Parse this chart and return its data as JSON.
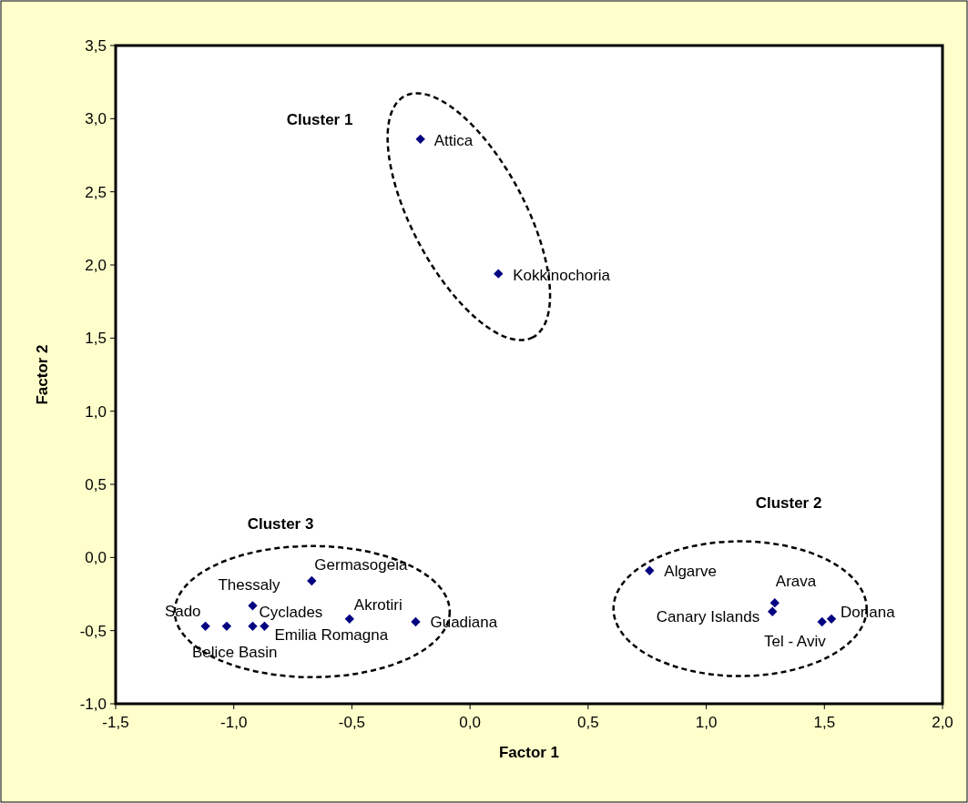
{
  "chart_data": {
    "type": "scatter",
    "xlabel": "Factor 1",
    "ylabel": "Factor 2",
    "marker": "diamond",
    "grid": false,
    "xlim": [
      -1.5,
      2.0
    ],
    "xticks": [
      {
        "value": -1.5,
        "label": "-1,5"
      },
      {
        "value": -1.0,
        "label": "-1,0"
      },
      {
        "value": -0.5,
        "label": "-0,5"
      },
      {
        "value": 0,
        "label": "0,0"
      },
      {
        "value": 0.5,
        "label": "0,5"
      },
      {
        "value": 1.0,
        "label": "1,0"
      },
      {
        "value": 1.5,
        "label": "1,5"
      },
      {
        "value": 2.0,
        "label": "2,0"
      }
    ],
    "ylim": [
      -1.0,
      3.5
    ],
    "yticks": [
      {
        "value": -1.0,
        "label": "-1,0"
      },
      {
        "value": -0.5,
        "label": "-0,5"
      },
      {
        "value": 0,
        "label": "0,0"
      },
      {
        "value": 0.5,
        "label": "0,5"
      },
      {
        "value": 1.0,
        "label": "1,0"
      },
      {
        "value": 1.5,
        "label": "1,5"
      },
      {
        "value": 2.0,
        "label": "2,0"
      },
      {
        "value": 2.5,
        "label": "2,5"
      },
      {
        "value": 3.0,
        "label": "3,0"
      },
      {
        "value": 3.5,
        "label": "3,5"
      }
    ],
    "series": [
      {
        "color": "#000080",
        "x": [
          -0.21,
          0.12,
          -1.12,
          -1.03,
          -0.92,
          -0.92,
          -0.87,
          -0.67,
          -0.51,
          -0.23,
          0.76,
          1.29,
          1.28,
          1.49,
          1.53
        ],
        "values": [
          2.86,
          1.94,
          -0.47,
          -0.47,
          -0.33,
          -0.47,
          -0.47,
          -0.16,
          -0.42,
          -0.44,
          -0.09,
          -0.31,
          -0.37,
          -0.44,
          -0.42
        ]
      }
    ],
    "annotations": [
      "Cluster 1",
      "Cluster 2",
      "Cluster 3",
      {
        "text": "Attica",
        "x": -0.21,
        "y": 2.86
      },
      {
        "text": "Kokkinochoria",
        "x": 0.12,
        "y": 1.94
      },
      {
        "text": "Sado",
        "x": -1.12,
        "y": -0.47
      },
      {
        "text": "Belice Basin",
        "x": -1.03,
        "y": -0.47
      },
      {
        "text": "Thessaly",
        "x": -0.92,
        "y": -0.33
      },
      {
        "text": "Cyclades",
        "x": -0.92,
        "y": -0.47
      },
      {
        "text": "Emilia Romagna",
        "x": -0.87,
        "y": -0.47
      },
      {
        "text": "Germasogeia",
        "x": -0.67,
        "y": -0.16
      },
      {
        "text": "Akrotiri",
        "x": -0.51,
        "y": -0.42
      },
      {
        "text": "Guadiana",
        "x": -0.23,
        "y": -0.44
      },
      {
        "text": "Algarve",
        "x": 0.76,
        "y": -0.09
      },
      {
        "text": "Arava",
        "x": 1.29,
        "y": -0.31
      },
      {
        "text": "Canary Islands",
        "x": 1.28,
        "y": -0.37
      },
      {
        "text": "Tel - Aviv",
        "x": 1.49,
        "y": -0.44
      },
      {
        "text": "Donana",
        "x": 1.53,
        "y": -0.42
      }
    ]
  }
}
